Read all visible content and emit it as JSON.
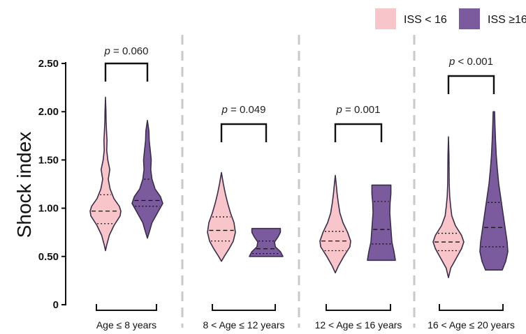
{
  "chart_data": {
    "type": "violin",
    "ylabel": "Shock index",
    "ylim": [
      0,
      2.5
    ],
    "yticks": [
      "0",
      "0.50",
      "1.00",
      "1.50",
      "2.00",
      "2.50"
    ],
    "ytick_values": [
      0,
      0.5,
      1.0,
      1.5,
      2.0,
      2.5
    ],
    "legend": [
      {
        "name": "ISS < 16",
        "color": "#f7c5ca"
      },
      {
        "name": "ISS ≥16",
        "color": "#7b5b9e"
      }
    ],
    "legend_position": "top-right",
    "groups": [
      {
        "label": "Age ≤ 8 years",
        "pvalue": {
          "p": "p",
          "text": " = 0.060"
        },
        "violins": [
          {
            "series": "ISS < 16",
            "min": 0.56,
            "max": 2.15,
            "q1": 0.84,
            "median": 0.97,
            "q3": 1.14,
            "profile": [
              [
                0.56,
                0.0
              ],
              [
                0.62,
                0.08
              ],
              [
                0.72,
                0.25
              ],
              [
                0.82,
                0.55
              ],
              [
                0.92,
                0.95
              ],
              [
                0.97,
                1.0
              ],
              [
                1.02,
                0.9
              ],
              [
                1.1,
                0.55
              ],
              [
                1.2,
                0.3
              ],
              [
                1.3,
                0.18
              ],
              [
                1.4,
                0.28
              ],
              [
                1.5,
                0.15
              ],
              [
                1.6,
                0.08
              ],
              [
                1.7,
                0.1
              ],
              [
                1.8,
                0.07
              ],
              [
                1.9,
                0.04
              ],
              [
                2.0,
                0.03
              ],
              [
                2.15,
                0.0
              ]
            ]
          },
          {
            "series": "ISS ≥16",
            "min": 0.69,
            "max": 1.91,
            "q1": 1.02,
            "median": 1.08,
            "q3": 1.3,
            "profile": [
              [
                0.69,
                0.0
              ],
              [
                0.75,
                0.12
              ],
              [
                0.85,
                0.3
              ],
              [
                0.95,
                0.65
              ],
              [
                1.05,
                1.0
              ],
              [
                1.12,
                0.85
              ],
              [
                1.2,
                0.5
              ],
              [
                1.3,
                0.3
              ],
              [
                1.4,
                0.22
              ],
              [
                1.5,
                0.25
              ],
              [
                1.58,
                0.2
              ],
              [
                1.7,
                0.12
              ],
              [
                1.8,
                0.1
              ],
              [
                1.91,
                0.0
              ]
            ]
          }
        ]
      },
      {
        "label": "8 < Age ≤ 12 years",
        "pvalue": {
          "p": "p",
          "text": " = 0.049"
        },
        "violins": [
          {
            "series": "ISS < 16",
            "min": 0.45,
            "max": 1.37,
            "q1": 0.66,
            "median": 0.77,
            "q3": 0.91,
            "profile": [
              [
                0.45,
                0.0
              ],
              [
                0.5,
                0.2
              ],
              [
                0.58,
                0.55
              ],
              [
                0.66,
                0.85
              ],
              [
                0.75,
                1.0
              ],
              [
                0.85,
                0.9
              ],
              [
                0.95,
                0.65
              ],
              [
                1.05,
                0.45
              ],
              [
                1.15,
                0.28
              ],
              [
                1.25,
                0.14
              ],
              [
                1.37,
                0.0
              ]
            ]
          },
          {
            "series": "ISS ≥16",
            "min": 0.5,
            "max": 0.79,
            "q1": 0.53,
            "median": 0.58,
            "q3": 0.66,
            "profile": [
              [
                0.5,
                1.0
              ],
              [
                0.55,
                0.85
              ],
              [
                0.6,
                0.55
              ],
              [
                0.65,
                0.5
              ],
              [
                0.7,
                0.7
              ],
              [
                0.75,
                0.85
              ],
              [
                0.79,
                0.85
              ]
            ]
          }
        ]
      },
      {
        "label": "12 < Age ≤ 16 years",
        "pvalue": {
          "p": "p",
          "text": " = 0.001"
        },
        "violins": [
          {
            "series": "ISS < 16",
            "min": 0.33,
            "max": 1.34,
            "q1": 0.56,
            "median": 0.66,
            "q3": 0.76,
            "profile": [
              [
                0.33,
                0.0
              ],
              [
                0.4,
                0.2
              ],
              [
                0.5,
                0.55
              ],
              [
                0.6,
                0.95
              ],
              [
                0.66,
                1.0
              ],
              [
                0.75,
                0.8
              ],
              [
                0.85,
                0.5
              ],
              [
                0.95,
                0.3
              ],
              [
                1.05,
                0.2
              ],
              [
                1.15,
                0.12
              ],
              [
                1.25,
                0.06
              ],
              [
                1.34,
                0.0
              ]
            ]
          },
          {
            "series": "ISS ≥16",
            "min": 0.46,
            "max": 1.24,
            "q1": 0.63,
            "median": 0.78,
            "q3": 1.07,
            "profile": [
              [
                0.46,
                1.0
              ],
              [
                0.55,
                0.9
              ],
              [
                0.65,
                0.75
              ],
              [
                0.75,
                0.7
              ],
              [
                0.85,
                0.65
              ],
              [
                0.95,
                0.6
              ],
              [
                1.05,
                0.62
              ],
              [
                1.15,
                0.68
              ],
              [
                1.24,
                0.68
              ]
            ]
          }
        ]
      },
      {
        "label": "16 < Age ≤ 20 years",
        "pvalue": {
          "p": "p",
          "text": " < 0.001"
        },
        "violins": [
          {
            "series": "ISS < 16",
            "min": 0.28,
            "max": 1.74,
            "q1": 0.56,
            "median": 0.65,
            "q3": 0.74,
            "profile": [
              [
                0.28,
                0.0
              ],
              [
                0.38,
                0.15
              ],
              [
                0.48,
                0.5
              ],
              [
                0.58,
                0.85
              ],
              [
                0.65,
                1.0
              ],
              [
                0.72,
                0.85
              ],
              [
                0.82,
                0.45
              ],
              [
                0.92,
                0.22
              ],
              [
                1.02,
                0.14
              ],
              [
                1.12,
                0.08
              ],
              [
                1.25,
                0.05
              ],
              [
                1.4,
                0.04
              ],
              [
                1.55,
                0.03
              ],
              [
                1.74,
                0.0
              ]
            ]
          },
          {
            "series": "ISS ≥16",
            "min": 0.36,
            "max": 2.0,
            "q1": 0.6,
            "median": 0.8,
            "q3": 1.06,
            "profile": [
              [
                0.36,
                0.6
              ],
              [
                0.45,
                0.85
              ],
              [
                0.55,
                1.0
              ],
              [
                0.65,
                0.95
              ],
              [
                0.75,
                0.85
              ],
              [
                0.85,
                0.75
              ],
              [
                0.95,
                0.65
              ],
              [
                1.05,
                0.55
              ],
              [
                1.15,
                0.45
              ],
              [
                1.25,
                0.35
              ],
              [
                1.4,
                0.25
              ],
              [
                1.55,
                0.17
              ],
              [
                1.7,
                0.12
              ],
              [
                1.85,
                0.08
              ],
              [
                2.0,
                0.05
              ]
            ]
          }
        ]
      }
    ]
  }
}
